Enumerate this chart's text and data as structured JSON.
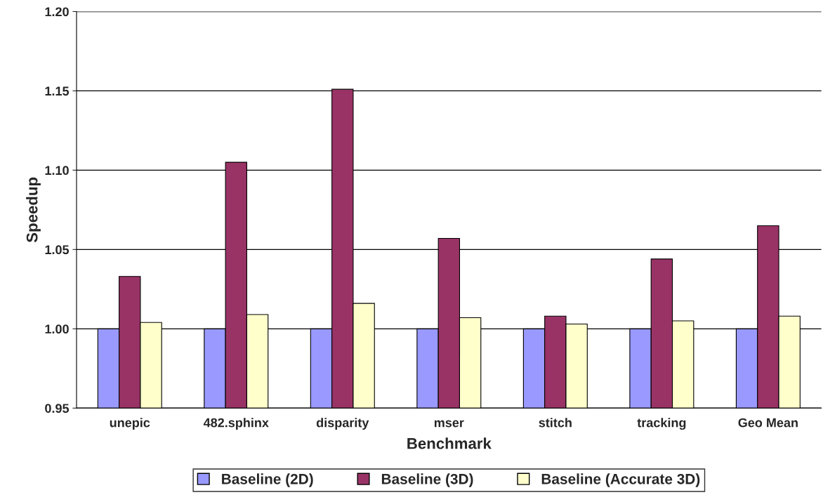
{
  "chart_data": {
    "type": "bar",
    "xlabel": "Benchmark",
    "ylabel": "Speedup",
    "categories": [
      "unepic",
      "482.sphinx",
      "disparity",
      "mser",
      "stitch",
      "tracking",
      "Geo Mean"
    ],
    "series": [
      {
        "name": "Baseline (2D)",
        "color": "#9999ff",
        "values": [
          1.0,
          1.0,
          1.0,
          1.0,
          1.0,
          1.0,
          1.0
        ]
      },
      {
        "name": "Baseline (3D)",
        "color": "#993366",
        "values": [
          1.033,
          1.105,
          1.151,
          1.057,
          1.008,
          1.044,
          1.065
        ]
      },
      {
        "name": "Baseline (Accurate 3D)",
        "color": "#ffffcc",
        "values": [
          1.004,
          1.009,
          1.016,
          1.007,
          1.003,
          1.005,
          1.008
        ]
      }
    ],
    "ylim": [
      0.95,
      1.2
    ],
    "yticks": [
      {
        "value": 0.95,
        "label": "0.95"
      },
      {
        "value": 1.0,
        "label": "1.00"
      },
      {
        "value": 1.05,
        "label": "1.05"
      },
      {
        "value": 1.1,
        "label": "1.10"
      },
      {
        "value": 1.15,
        "label": "1.15"
      },
      {
        "value": 1.2,
        "label": "1.20"
      }
    ],
    "grid": "y",
    "legend": "bottom"
  }
}
